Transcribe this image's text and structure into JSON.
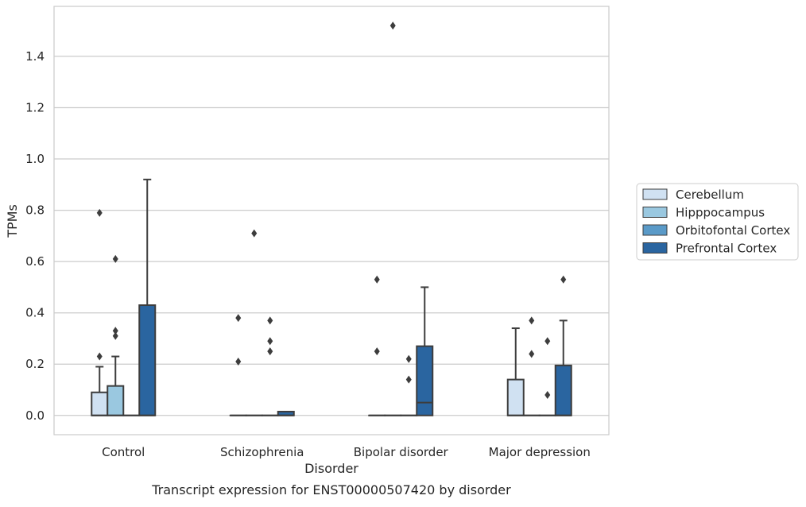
{
  "chart_data": {
    "type": "box",
    "title": "",
    "caption": "Transcript expression for ENST00000507420 by disorder",
    "xlabel": "Disorder",
    "ylabel": "TPMs",
    "ylim": [
      -0.075,
      1.595
    ],
    "yticks": [
      "0.0",
      "0.2",
      "0.4",
      "0.6",
      "0.8",
      "1.0",
      "1.2",
      "1.4"
    ],
    "grid": true,
    "legend_position": "right",
    "categories": [
      "Control",
      "Schizophrenia",
      "Bipolar disorder",
      "Major depression"
    ],
    "series": [
      {
        "name": "Cerebellum",
        "color": "#d0e1f2",
        "boxes": [
          {
            "q1": 0,
            "median": 0,
            "q3": 0.09,
            "whisker_low": 0,
            "whisker_high": 0.19,
            "outliers": [
              0.23,
              0.79
            ]
          },
          {
            "q1": 0,
            "median": 0,
            "q3": 0,
            "whisker_low": 0,
            "whisker_high": 0,
            "outliers": [
              0.21,
              0.38
            ]
          },
          {
            "q1": 0,
            "median": 0,
            "q3": 0,
            "whisker_low": 0,
            "whisker_high": 0,
            "outliers": [
              0.25,
              0.53
            ]
          },
          {
            "q1": 0,
            "median": 0,
            "q3": 0.14,
            "whisker_low": 0,
            "whisker_high": 0.34,
            "outliers": []
          }
        ]
      },
      {
        "name": "Hipppocampus",
        "color": "#9ac8e0",
        "boxes": [
          {
            "q1": 0,
            "median": 0,
            "q3": 0.115,
            "whisker_low": 0,
            "whisker_high": 0.23,
            "outliers": [
              0.31,
              0.33,
              0.61
            ]
          },
          {
            "q1": 0,
            "median": 0,
            "q3": 0,
            "whisker_low": 0,
            "whisker_high": 0,
            "outliers": [
              0.71
            ]
          },
          {
            "q1": 0,
            "median": 0,
            "q3": 0,
            "whisker_low": 0,
            "whisker_high": 0,
            "outliers": [
              1.52
            ]
          },
          {
            "q1": 0,
            "median": 0,
            "q3": 0,
            "whisker_low": 0,
            "whisker_high": 0,
            "outliers": [
              0.24,
              0.37
            ]
          }
        ]
      },
      {
        "name": "Orbitofontal Cortex",
        "color": "#5a9ac8",
        "boxes": [
          {
            "q1": 0,
            "median": 0,
            "q3": 0,
            "whisker_low": 0,
            "whisker_high": 0,
            "outliers": []
          },
          {
            "q1": 0,
            "median": 0,
            "q3": 0,
            "whisker_low": 0,
            "whisker_high": 0,
            "outliers": [
              0.25,
              0.29,
              0.37
            ]
          },
          {
            "q1": 0,
            "median": 0,
            "q3": 0,
            "whisker_low": 0,
            "whisker_high": 0,
            "outliers": [
              0.14,
              0.22
            ]
          },
          {
            "q1": 0,
            "median": 0,
            "q3": 0,
            "whisker_low": 0,
            "whisker_high": 0,
            "outliers": [
              0.08,
              0.29
            ]
          }
        ]
      },
      {
        "name": "Prefrontal Cortex",
        "color": "#2a65a0",
        "boxes": [
          {
            "q1": 0,
            "median": 0,
            "q3": 0.43,
            "whisker_low": 0,
            "whisker_high": 0.92,
            "outliers": []
          },
          {
            "q1": 0,
            "median": 0,
            "q3": 0.015,
            "whisker_low": 0,
            "whisker_high": 0.015,
            "outliers": []
          },
          {
            "q1": 0,
            "median": 0.05,
            "q3": 0.27,
            "whisker_low": 0,
            "whisker_high": 0.5,
            "outliers": []
          },
          {
            "q1": 0,
            "median": 0,
            "q3": 0.195,
            "whisker_low": 0,
            "whisker_high": 0.37,
            "outliers": [
              0.53
            ]
          }
        ]
      }
    ]
  }
}
